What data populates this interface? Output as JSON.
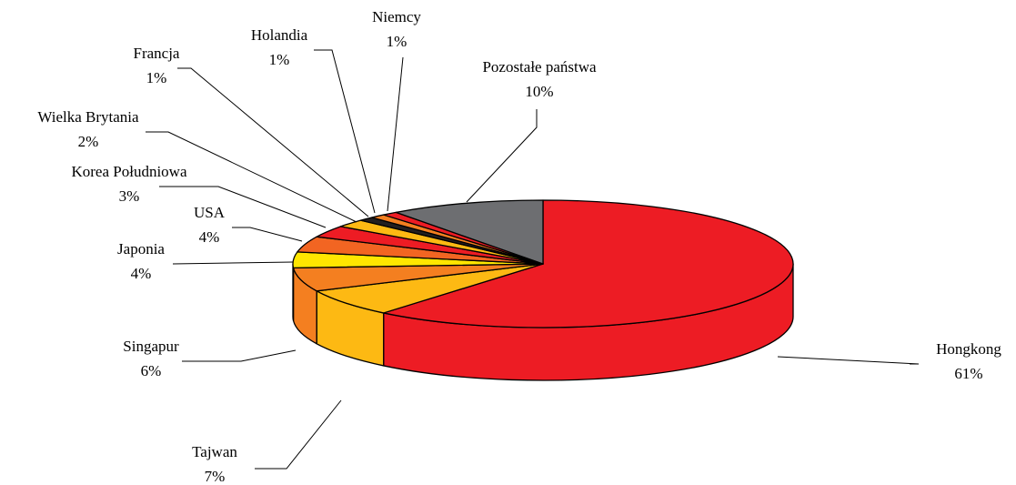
{
  "chart_data": {
    "type": "pie3d",
    "categories": [
      "Hongkong",
      "Tajwan",
      "Singapur",
      "Japonia",
      "USA",
      "Korea Południowa",
      "Wielka Brytania",
      "Francja",
      "Holandia",
      "Niemcy",
      "Pozostałe państwa"
    ],
    "values": [
      61,
      7,
      6,
      4,
      4,
      3,
      2,
      1,
      1,
      1,
      10
    ],
    "value_labels": [
      "61%",
      "7%",
      "6%",
      "4%",
      "4%",
      "3%",
      "2%",
      "1%",
      "1%",
      "1%",
      "10%"
    ],
    "colors": [
      "#ed1c24",
      "#fdb913",
      "#f47f20",
      "#ffe600",
      "#f26522",
      "#ed1c24",
      "#fdb913",
      "#231f20",
      "#f47f20",
      "#ed1c24",
      "#6d6e71"
    ]
  }
}
